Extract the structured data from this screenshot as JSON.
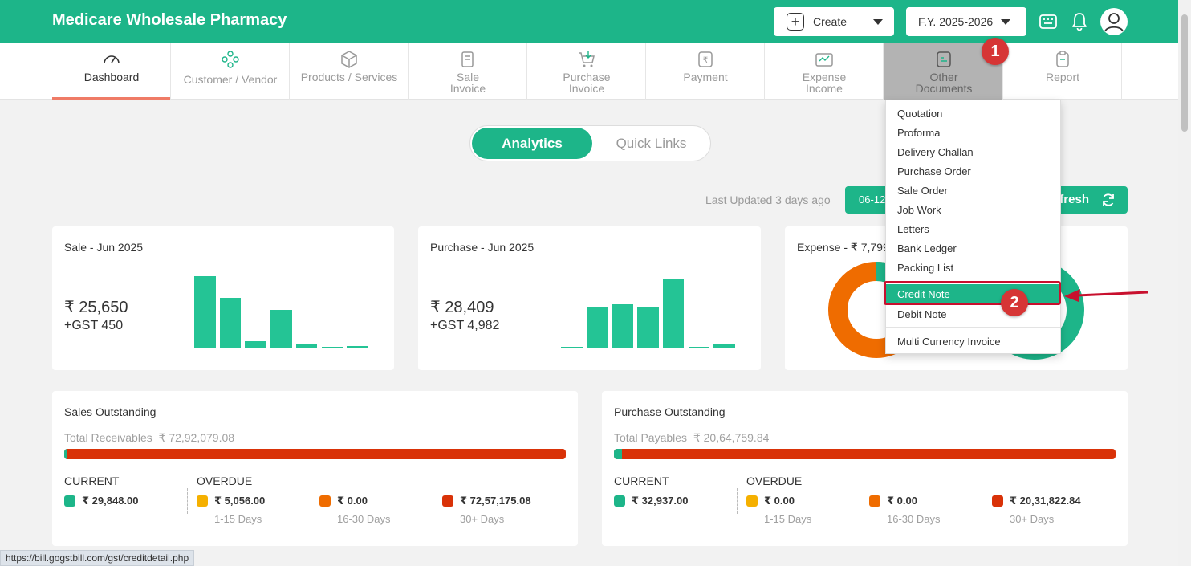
{
  "header": {
    "brand": "Medicare Wholesale Pharmacy",
    "create_label": "Create",
    "fy_label": "F.Y. 2025-2026"
  },
  "nav": {
    "items": [
      {
        "label": "Dashboard"
      },
      {
        "label": "Customer / Vendor"
      },
      {
        "label": "Products / Services"
      },
      {
        "label": "Sale\nInvoice"
      },
      {
        "label": "Purchase\nInvoice"
      },
      {
        "label": "Payment"
      },
      {
        "label": "Expense\nIncome"
      },
      {
        "label": "Other\nDocuments"
      },
      {
        "label": "Report"
      }
    ]
  },
  "annotations": {
    "step1": "1",
    "step2": "2"
  },
  "toggle": {
    "active": "Analytics",
    "inactive": "Quick Links"
  },
  "toolbar": {
    "last_updated": "Last Updated 3 days ago",
    "date": "06-12",
    "refresh": "efresh"
  },
  "cards": {
    "sale": {
      "title": "Sale - Jun 2025",
      "amount": "₹ 25,650",
      "gst": "+GST 450",
      "bar_levels": [
        1.0,
        0.7,
        0.1,
        0.53,
        0.06,
        0.02,
        0.03
      ]
    },
    "purchase": {
      "title": "Purchase - Jun 2025",
      "amount": "₹ 28,409",
      "gst": "+GST 4,982",
      "bar_levels": [
        0.02,
        0.61,
        0.64,
        0.61,
        1.0,
        0.02,
        0.06
      ]
    },
    "expense": {
      "title": "Expense - ₹ 7,799"
    }
  },
  "sales_outstanding": {
    "title": "Sales Outstanding",
    "total_label": "Total Receivables",
    "total_value": "₹ 72,92,079.08",
    "current_fraction": 0.004,
    "current_label": "CURRENT",
    "overdue_label": "OVERDUE",
    "current_value": "₹ 29,848.00",
    "buckets": [
      {
        "value": "₹ 5,056.00",
        "range": "1-15 Days"
      },
      {
        "value": "₹ 0.00",
        "range": "16-30 Days"
      },
      {
        "value": "₹ 72,57,175.08",
        "range": "30+ Days"
      }
    ]
  },
  "purchase_outstanding": {
    "title": "Purchase Outstanding",
    "total_label": "Total Payables",
    "total_value": "₹ 20,64,759.84",
    "current_fraction": 0.016,
    "current_label": "CURRENT",
    "overdue_label": "OVERDUE",
    "current_value": "₹ 32,937.00",
    "buckets": [
      {
        "value": "₹ 0.00",
        "range": "1-15 Days"
      },
      {
        "value": "₹ 0.00",
        "range": "16-30 Days"
      },
      {
        "value": "₹ 20,31,822.84",
        "range": "30+ Days"
      }
    ]
  },
  "dropdown": {
    "items": [
      "Quotation",
      "Proforma",
      "Delivery Challan",
      "Purchase Order",
      "Sale Order",
      "Job Work",
      "Letters",
      "Bank Ledger",
      "Packing List"
    ],
    "credit_note": "Credit Note",
    "debit_note": "Debit Note",
    "multi_currency": "Multi Currency Invoice"
  },
  "colors": {
    "brand": "#1db589",
    "current": "#1db589",
    "bucket_1_15": "#f5b000",
    "bucket_16_30": "#ef6c00",
    "bucket_30_plus": "#d93208",
    "donut_orange": "#ef6c00"
  },
  "status_url": "https://bill.gogstbill.com/gst/creditdetail.php"
}
